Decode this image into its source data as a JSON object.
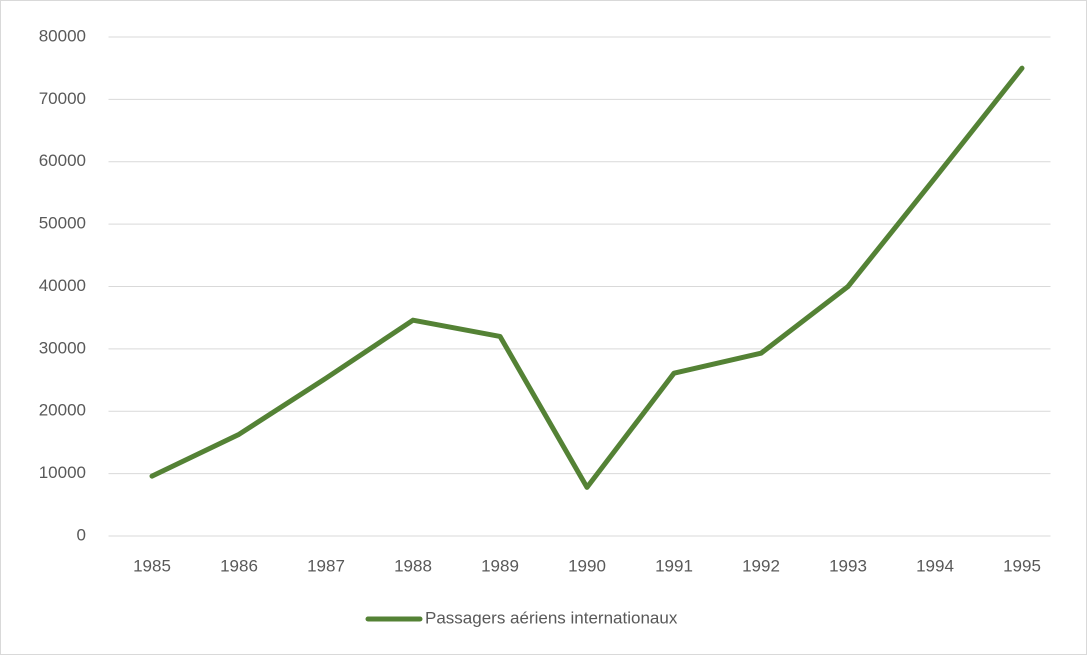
{
  "chart_data": {
    "type": "line",
    "categories": [
      "1985",
      "1986",
      "1987",
      "1988",
      "1989",
      "1990",
      "1991",
      "1992",
      "1993",
      "1994",
      "1995"
    ],
    "series": [
      {
        "name": "Passagers aériens internationaux",
        "color": "#548235",
        "values": [
          9600,
          16300,
          25300,
          34600,
          32000,
          7800,
          26100,
          29300,
          40000,
          57400,
          75000
        ]
      }
    ],
    "ylim": [
      0,
      80000
    ],
    "yticks": [
      0,
      10000,
      20000,
      30000,
      40000,
      50000,
      60000,
      70000,
      80000
    ],
    "grid": true,
    "legend": "bottom"
  }
}
